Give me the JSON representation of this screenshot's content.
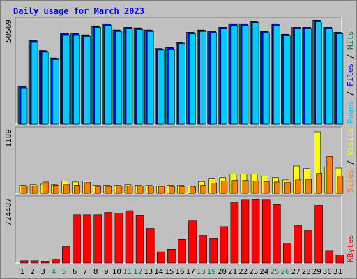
{
  "title": "Daily usage for March 2023",
  "colors": {
    "background": "#c0c0c0",
    "panel": "#c0c0c0",
    "title": "#0000ff",
    "hits": "#00805c",
    "files": "#0000ff",
    "pages": "#00ccff",
    "visits": "#ffff00",
    "sites": "#ff8000",
    "kbytes": "#ff0000",
    "weekend": "#00805c",
    "text": "#000000"
  },
  "chart_data": [
    {
      "type": "bar",
      "name": "hits-files-pages",
      "x": [
        1,
        2,
        3,
        4,
        5,
        6,
        7,
        8,
        9,
        10,
        11,
        12,
        13,
        14,
        15,
        16,
        17,
        18,
        19,
        20,
        21,
        22,
        23,
        24,
        25,
        26,
        27,
        28,
        29,
        30,
        31
      ],
      "ymax_label": "50569",
      "ymax": 50569,
      "ylim": [
        0,
        50569
      ],
      "series": [
        {
          "name": "Hits",
          "color": "#00805c",
          "values": [
            18400,
            40800,
            35800,
            32200,
            44200,
            44200,
            43400,
            47800,
            48800,
            45800,
            47300,
            46800,
            45800,
            36800,
            37300,
            39900,
            44700,
            45800,
            45300,
            47300,
            48800,
            48800,
            50100,
            45300,
            48800,
            43700,
            47300,
            47300,
            50569,
            47300,
            44700
          ]
        },
        {
          "name": "Files",
          "color": "#0000ff",
          "values": [
            18200,
            40600,
            35600,
            32000,
            44000,
            44000,
            43200,
            47600,
            48600,
            45600,
            47100,
            46600,
            45600,
            36600,
            37100,
            39700,
            44500,
            45600,
            45100,
            47100,
            48600,
            48600,
            49900,
            45100,
            48600,
            43500,
            47100,
            47100,
            50400,
            47100,
            44500
          ]
        },
        {
          "name": "Pages",
          "color": "#00ccff",
          "values": [
            17600,
            40000,
            35000,
            31400,
            43400,
            43400,
            42600,
            47000,
            48000,
            45000,
            46500,
            46000,
            45000,
            36000,
            36500,
            39100,
            43900,
            45000,
            44500,
            46500,
            48000,
            48000,
            49300,
            44500,
            48000,
            42900,
            46500,
            46500,
            49800,
            46500,
            43900
          ]
        }
      ],
      "legend": [
        "Pages",
        "Files",
        "Hits"
      ],
      "legend_separator": "/"
    },
    {
      "type": "bar",
      "name": "visits-sites",
      "x": [
        1,
        2,
        3,
        4,
        5,
        6,
        7,
        8,
        9,
        10,
        11,
        12,
        13,
        14,
        15,
        16,
        17,
        18,
        19,
        20,
        21,
        22,
        23,
        24,
        25,
        26,
        27,
        28,
        29,
        30,
        31
      ],
      "ymax_label": "1189",
      "ymax": 1189,
      "ylim": [
        0,
        1189
      ],
      "series": [
        {
          "name": "Visits",
          "color": "#ffff00",
          "values": [
            150,
            160,
            170,
            160,
            230,
            210,
            230,
            150,
            150,
            150,
            160,
            150,
            150,
            140,
            150,
            150,
            140,
            220,
            280,
            290,
            360,
            360,
            360,
            320,
            290,
            250,
            510,
            460,
            1150,
            490,
            470
          ]
        },
        {
          "name": "Sites",
          "color": "#ff8000",
          "values": [
            140,
            140,
            210,
            150,
            160,
            150,
            200,
            130,
            130,
            140,
            140,
            140,
            140,
            130,
            130,
            130,
            120,
            150,
            190,
            230,
            240,
            240,
            230,
            220,
            210,
            200,
            250,
            260,
            370,
            690,
            320
          ]
        }
      ],
      "legend": [
        "Sites",
        "Visits"
      ],
      "legend_separator": "/"
    },
    {
      "type": "bar",
      "name": "kbytes",
      "x": [
        1,
        2,
        3,
        4,
        5,
        6,
        7,
        8,
        9,
        10,
        11,
        12,
        13,
        14,
        15,
        16,
        17,
        18,
        19,
        20,
        21,
        22,
        23,
        24,
        25,
        26,
        27,
        28,
        29,
        30,
        31
      ],
      "ymax_label": "724487",
      "ymax": 724487,
      "ylim": [
        0,
        724487
      ],
      "series": [
        {
          "name": "KBytes",
          "color": "#ff0000",
          "values": [
            25000,
            25000,
            20000,
            45000,
            185000,
            545000,
            545000,
            545000,
            570000,
            565000,
            590000,
            540000,
            390000,
            125000,
            155000,
            265000,
            475000,
            310000,
            280000,
            410000,
            680000,
            710000,
            715000,
            710000,
            660000,
            225000,
            425000,
            365000,
            650000,
            135000,
            90000
          ]
        }
      ],
      "legend": [
        "KBytes"
      ],
      "legend_separator": "/"
    }
  ],
  "x_labels": [
    "1",
    "2",
    "3",
    "4",
    "5",
    "6",
    "7",
    "8",
    "9",
    "10",
    "11",
    "12",
    "13",
    "14",
    "15",
    "16",
    "17",
    "18",
    "19",
    "20",
    "21",
    "22",
    "23",
    "24",
    "25",
    "26",
    "27",
    "28",
    "29",
    "30",
    "31"
  ],
  "weekend_days": [
    4,
    5,
    11,
    12,
    18,
    19,
    25,
    26
  ]
}
